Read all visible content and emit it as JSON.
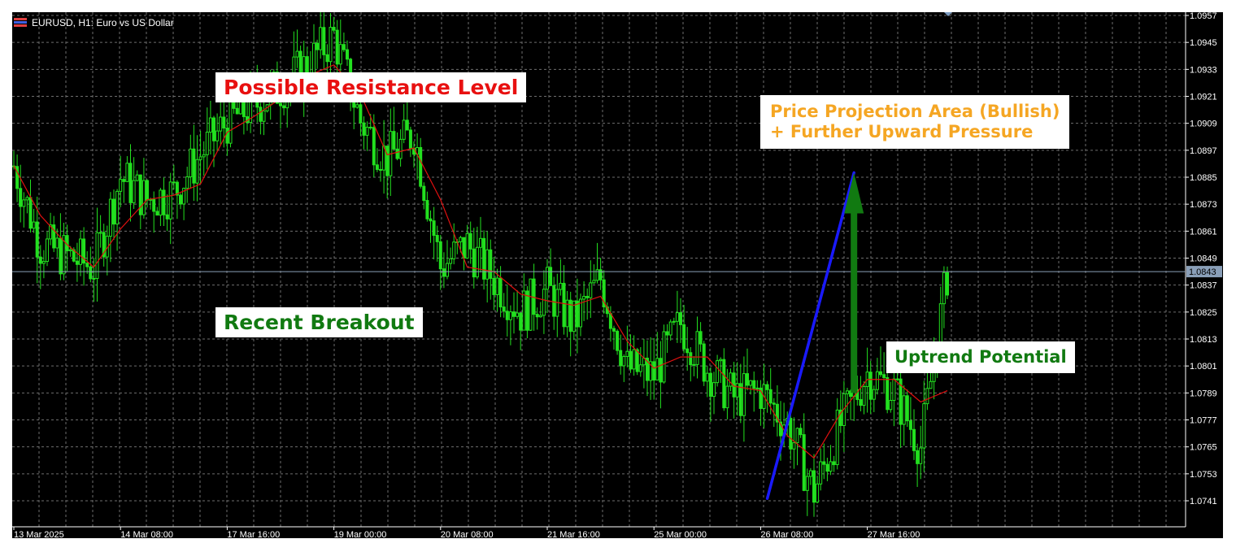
{
  "header": {
    "symbol_label": "EURUSD, H1:  Euro vs US Dollar"
  },
  "annotations": {
    "resistance": "Possible Resistance Level",
    "breakout": "Recent Breakout",
    "projection": "Price Projection Area (Bullish)\n+ Further Upward Pressure",
    "uptrend": "Uptrend Potential"
  },
  "colors": {
    "background": "#000000",
    "grid": "#6e6e6e",
    "candles": "#22e01f",
    "moving_average": "#e01010",
    "trend_line": "#1a1aff",
    "projection_arrow": "#117a11",
    "resistance_text": "#e81010",
    "breakout_text": "#117a11",
    "projection_text": "#f5a623",
    "uptrend_text": "#117a11",
    "axis_text": "#ffffff",
    "current_price_bg": "#8a9fb8"
  },
  "chart_data": {
    "type": "line",
    "title": "EURUSD, H1:  Euro vs US Dollar",
    "xlabel": "",
    "ylabel": "",
    "ylim": [
      1.0735,
      1.0957
    ],
    "grid": true,
    "current_price": "1.0843",
    "y_ticks": [
      "1.0957",
      "1.0945",
      "1.0933",
      "1.0921",
      "1.0909",
      "1.0897",
      "1.0885",
      "1.0873",
      "1.0861",
      "1.0849",
      "1.0837",
      "1.0825",
      "1.0813",
      "1.0801",
      "1.0789",
      "1.0777",
      "1.0765",
      "1.0753",
      "1.0741"
    ],
    "x_ticks": [
      {
        "label": "13 Mar 2025",
        "bar": 0
      },
      {
        "label": "14 Mar 08:00",
        "bar": 16
      },
      {
        "label": "17 Mar 16:00",
        "bar": 32
      },
      {
        "label": "19 Mar 00:00",
        "bar": 48
      },
      {
        "label": "20 Mar 08:00",
        "bar": 64
      },
      {
        "label": "21 Mar 16:00",
        "bar": 80
      },
      {
        "label": "25 Mar 00:00",
        "bar": 96
      },
      {
        "label": "26 Mar 08:00",
        "bar": 112
      },
      {
        "label": "27 Mar 16:00",
        "bar": 128
      }
    ],
    "price_series": {
      "name": "EURUSD H1 close",
      "bars": [
        0,
        4,
        8,
        12,
        16,
        20,
        24,
        28,
        32,
        36,
        40,
        44,
        48,
        52,
        56,
        60,
        64,
        68,
        72,
        76,
        80,
        84,
        88,
        92,
        96,
        100,
        104,
        108,
        112,
        116,
        120,
        124,
        128,
        132,
        136,
        140
      ],
      "values": [
        1.089,
        1.0855,
        1.085,
        1.0845,
        1.0885,
        1.0875,
        1.0878,
        1.0895,
        1.091,
        1.0917,
        1.0925,
        1.0935,
        1.0948,
        1.091,
        1.0893,
        1.0905,
        1.0845,
        1.0855,
        1.084,
        1.0825,
        1.0835,
        1.082,
        1.084,
        1.08,
        1.0797,
        1.082,
        1.08,
        1.0787,
        1.079,
        1.0775,
        1.0745,
        1.0775,
        1.0798,
        1.079,
        1.0765,
        1.0842
      ]
    },
    "moving_average": {
      "name": "MA",
      "bars": [
        0,
        4,
        8,
        12,
        16,
        20,
        24,
        28,
        32,
        36,
        40,
        44,
        48,
        52,
        56,
        60,
        64,
        68,
        72,
        76,
        80,
        84,
        88,
        92,
        96,
        100,
        104,
        108,
        112,
        116,
        120,
        124,
        128,
        132,
        136,
        140
      ],
      "values": [
        1.089,
        1.0868,
        1.0855,
        1.0845,
        1.0862,
        1.0875,
        1.0877,
        1.0882,
        1.0905,
        1.0912,
        1.092,
        1.093,
        1.0935,
        1.0922,
        1.0895,
        1.0898,
        1.0875,
        1.0845,
        1.0843,
        1.0833,
        1.083,
        1.0828,
        1.0832,
        1.0812,
        1.08,
        1.0805,
        1.0805,
        1.0792,
        1.079,
        1.077,
        1.076,
        1.078,
        1.0795,
        1.0795,
        1.0785,
        1.079
      ]
    },
    "trend_line": {
      "from": {
        "bar": 113,
        "price": 1.0742
      },
      "to": {
        "bar": 126,
        "price": 1.0887
      }
    },
    "projection_arrow": {
      "bar": 126,
      "from_price": 1.0789,
      "to_price": 1.0887
    },
    "resistance_label": "Possible Resistance Level",
    "breakout_label": "Recent Breakout",
    "projection_label": "Price Projection Area (Bullish)\n+ Further Upward Pressure",
    "uptrend_label": "Uptrend Potential"
  }
}
